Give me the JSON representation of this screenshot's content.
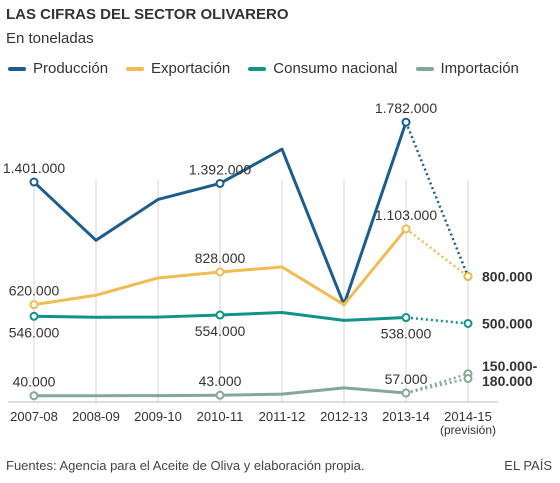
{
  "header": {
    "title": "LAS CIFRAS DEL SECTOR OLIVARERO",
    "subtitle": "En toneladas"
  },
  "footer": {
    "source": "Fuentes: Agencia para el Aceite de Oliva y elaboración propia.",
    "brand": "EL PAÍS"
  },
  "chart_data": {
    "type": "line",
    "title": "LAS CIFRAS DEL SECTOR OLIVARERO",
    "subtitle": "En toneladas",
    "categories": [
      "2007-08",
      "2008-09",
      "2009-10",
      "2010-11",
      "2011-12",
      "2012-13",
      "2013-14",
      "2014-15"
    ],
    "category_notes": {
      "2014-15": "(previsión)"
    },
    "ylim": [
      0,
      2000000
    ],
    "grid": "vertical",
    "legend_position": "top",
    "forecast_from_index": 6,
    "series": [
      {
        "name": "Producción",
        "color": "#1b5e8e",
        "values": [
          1401000,
          1030000,
          1290000,
          1392000,
          1610000,
          620000,
          1782000,
          800000
        ],
        "labels": [
          {
            "index": 0,
            "text": "1.401.000",
            "pos": "above"
          },
          {
            "index": 3,
            "text": "1.392.000",
            "pos": "above"
          },
          {
            "index": 6,
            "text": "1.782.000",
            "pos": "above"
          },
          {
            "index": 7,
            "text": "800.000",
            "pos": "right",
            "bold": true
          }
        ]
      },
      {
        "name": "Exportación",
        "color": "#f0bc53",
        "values": [
          620000,
          680000,
          790000,
          828000,
          860000,
          620000,
          1103000,
          800000
        ],
        "labels": [
          {
            "index": 0,
            "text": "620.000",
            "pos": "above"
          },
          {
            "index": 3,
            "text": "828.000",
            "pos": "above"
          },
          {
            "index": 6,
            "text": "1.103.000",
            "pos": "above"
          }
        ]
      },
      {
        "name": "Consumo nacional",
        "color": "#11938a",
        "values": [
          546000,
          540000,
          541000,
          554000,
          570000,
          520000,
          538000,
          500000
        ],
        "labels": [
          {
            "index": 0,
            "text": "546.000",
            "pos": "below"
          },
          {
            "index": 3,
            "text": "554.000",
            "pos": "below"
          },
          {
            "index": 6,
            "text": "538.000",
            "pos": "below"
          },
          {
            "index": 7,
            "text": "500.000",
            "pos": "right",
            "bold": true
          }
        ]
      },
      {
        "name": "Importación",
        "color": "#85a796",
        "values": [
          40000,
          40000,
          41000,
          43000,
          50000,
          90000,
          57000,
          180000
        ],
        "extra_points": [
          {
            "index": 7,
            "value": 150000
          }
        ],
        "labels": [
          {
            "index": 0,
            "text": "40.000",
            "pos": "above"
          },
          {
            "index": 3,
            "text": "43.000",
            "pos": "above"
          },
          {
            "index": 6,
            "text": "57.000",
            "pos": "above"
          }
        ],
        "range_label": {
          "index": 7,
          "lines": [
            "150.000-",
            "180.000"
          ],
          "bold": true
        }
      }
    ]
  }
}
